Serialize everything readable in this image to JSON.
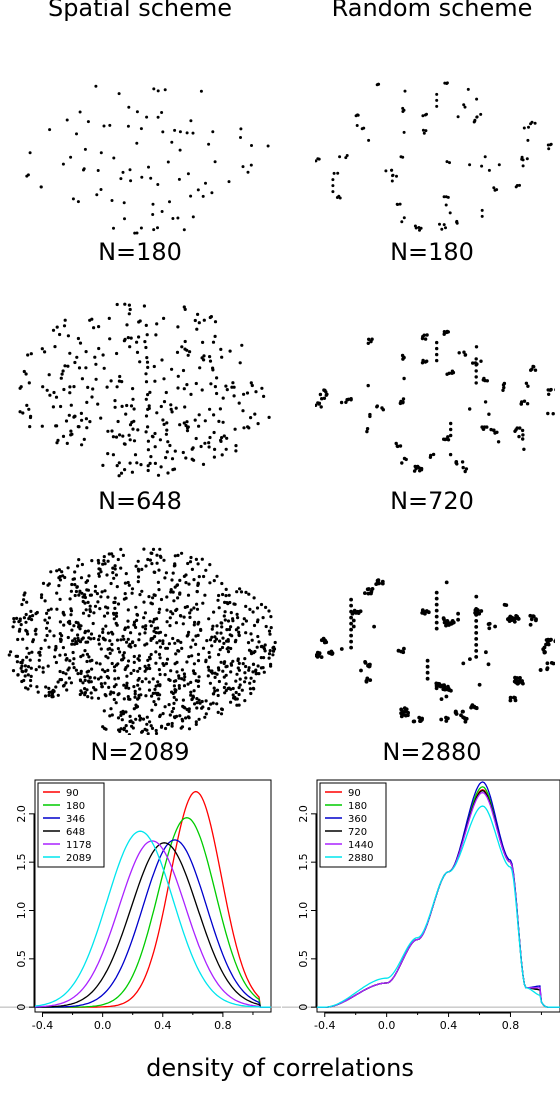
{
  "columns": {
    "spatial": "Spatial scheme",
    "random": "Random scheme"
  },
  "rows": [
    {
      "spatial_label": "N=180",
      "random_label": "N=180"
    },
    {
      "spatial_label": "N=648",
      "random_label": "N=720"
    },
    {
      "spatial_label": "N=2089",
      "random_label": "N=2880"
    }
  ],
  "footer": "density of correlations",
  "chart_data": [
    {
      "type": "line",
      "panel": "spatial",
      "xlim": [
        -0.45,
        1.12
      ],
      "ylim": [
        -0.05,
        2.35
      ],
      "xticks": [
        "-0.4",
        "0.0",
        "0.4",
        "0.8"
      ],
      "yticks": [
        "0",
        "0.5",
        "1.0",
        "1.5",
        "2.0"
      ],
      "grid": false,
      "legend_position": "top-left",
      "series": [
        {
          "name": "90",
          "color": "#ff0000",
          "mu": 0.62,
          "sd": 0.17,
          "peak": 2.23,
          "x": [
            -0.4,
            0.0,
            0.2,
            0.4,
            0.5,
            0.62,
            0.7,
            0.8,
            0.9,
            1.0
          ],
          "y": [
            0.0,
            0.03,
            0.25,
            0.9,
            1.5,
            2.23,
            2.05,
            1.3,
            0.45,
            0.03
          ]
        },
        {
          "name": "180",
          "color": "#00cc00",
          "mu": 0.56,
          "sd": 0.19,
          "peak": 1.96,
          "x": [
            -0.4,
            0.0,
            0.2,
            0.4,
            0.56,
            0.7,
            0.8,
            0.9,
            1.0
          ],
          "y": [
            0.0,
            0.1,
            0.45,
            1.2,
            1.96,
            1.45,
            0.8,
            0.25,
            0.02
          ]
        },
        {
          "name": "346",
          "color": "#0000cc",
          "mu": 0.48,
          "sd": 0.21,
          "peak": 1.73,
          "x": [
            -0.4,
            0.0,
            0.2,
            0.48,
            0.7,
            0.8,
            0.9,
            1.0
          ],
          "y": [
            0.0,
            0.25,
            0.7,
            1.73,
            1.05,
            0.55,
            0.18,
            0.02
          ]
        },
        {
          "name": "648",
          "color": "#000000",
          "mu": 0.41,
          "sd": 0.22,
          "peak": 1.7,
          "x": [
            -0.4,
            0.0,
            0.2,
            0.41,
            0.6,
            0.8,
            0.9,
            1.0
          ],
          "y": [
            0.0,
            0.35,
            0.95,
            1.7,
            1.3,
            0.4,
            0.12,
            0.01
          ]
        },
        {
          "name": "1178",
          "color": "#aa22ff",
          "mu": 0.33,
          "sd": 0.22,
          "peak": 1.72,
          "x": [
            -0.4,
            -0.2,
            0.0,
            0.33,
            0.6,
            0.8,
            0.9,
            1.0
          ],
          "y": [
            0.0,
            0.15,
            0.65,
            1.72,
            0.95,
            0.25,
            0.06,
            0.01
          ]
        },
        {
          "name": "2089",
          "color": "#00e5ee",
          "mu": 0.25,
          "sd": 0.22,
          "peak": 1.82,
          "x": [
            -0.4,
            -0.2,
            0.0,
            0.25,
            0.5,
            0.7,
            0.8,
            0.9
          ],
          "y": [
            0.0,
            0.25,
            0.95,
            1.82,
            1.2,
            0.4,
            0.15,
            0.03
          ]
        }
      ]
    },
    {
      "type": "line",
      "panel": "random",
      "xlim": [
        -0.45,
        1.12
      ],
      "ylim": [
        -0.05,
        2.35
      ],
      "xticks": [
        "-0.4",
        "0.0",
        "0.4",
        "0.8"
      ],
      "yticks": [
        "0",
        "0.5",
        "1.0",
        "1.5",
        "2.0"
      ],
      "grid": false,
      "legend_position": "top-left",
      "series": [
        {
          "name": "90",
          "color": "#ff0000",
          "x": [
            -0.4,
            0.0,
            0.2,
            0.4,
            0.62,
            0.8,
            0.9,
            1.0
          ],
          "y": [
            0.0,
            0.25,
            0.7,
            1.4,
            2.25,
            1.5,
            0.2,
            0.18
          ]
        },
        {
          "name": "180",
          "color": "#00cc00",
          "x": [
            -0.4,
            0.0,
            0.2,
            0.4,
            0.62,
            0.8,
            0.9,
            1.0
          ],
          "y": [
            0.0,
            0.25,
            0.7,
            1.4,
            2.28,
            1.5,
            0.2,
            0.18
          ]
        },
        {
          "name": "360",
          "color": "#0000cc",
          "x": [
            -0.4,
            0.0,
            0.2,
            0.4,
            0.62,
            0.8,
            0.9,
            1.0
          ],
          "y": [
            0.0,
            0.25,
            0.7,
            1.4,
            2.33,
            1.52,
            0.2,
            0.22
          ]
        },
        {
          "name": "720",
          "color": "#000000",
          "x": [
            -0.4,
            0.0,
            0.2,
            0.4,
            0.62,
            0.8,
            0.9,
            1.0
          ],
          "y": [
            0.0,
            0.25,
            0.7,
            1.4,
            2.24,
            1.5,
            0.2,
            0.18
          ]
        },
        {
          "name": "1440",
          "color": "#aa22ff",
          "x": [
            -0.4,
            0.0,
            0.2,
            0.4,
            0.62,
            0.8,
            0.9,
            1.0
          ],
          "y": [
            0.0,
            0.25,
            0.7,
            1.4,
            2.22,
            1.5,
            0.2,
            0.2
          ]
        },
        {
          "name": "2880",
          "color": "#00e5ee",
          "x": [
            -0.4,
            0.0,
            0.2,
            0.4,
            0.62,
            0.8,
            0.9,
            1.0
          ],
          "y": [
            0.0,
            0.3,
            0.72,
            1.4,
            2.08,
            1.45,
            0.2,
            0.12
          ]
        }
      ]
    }
  ]
}
